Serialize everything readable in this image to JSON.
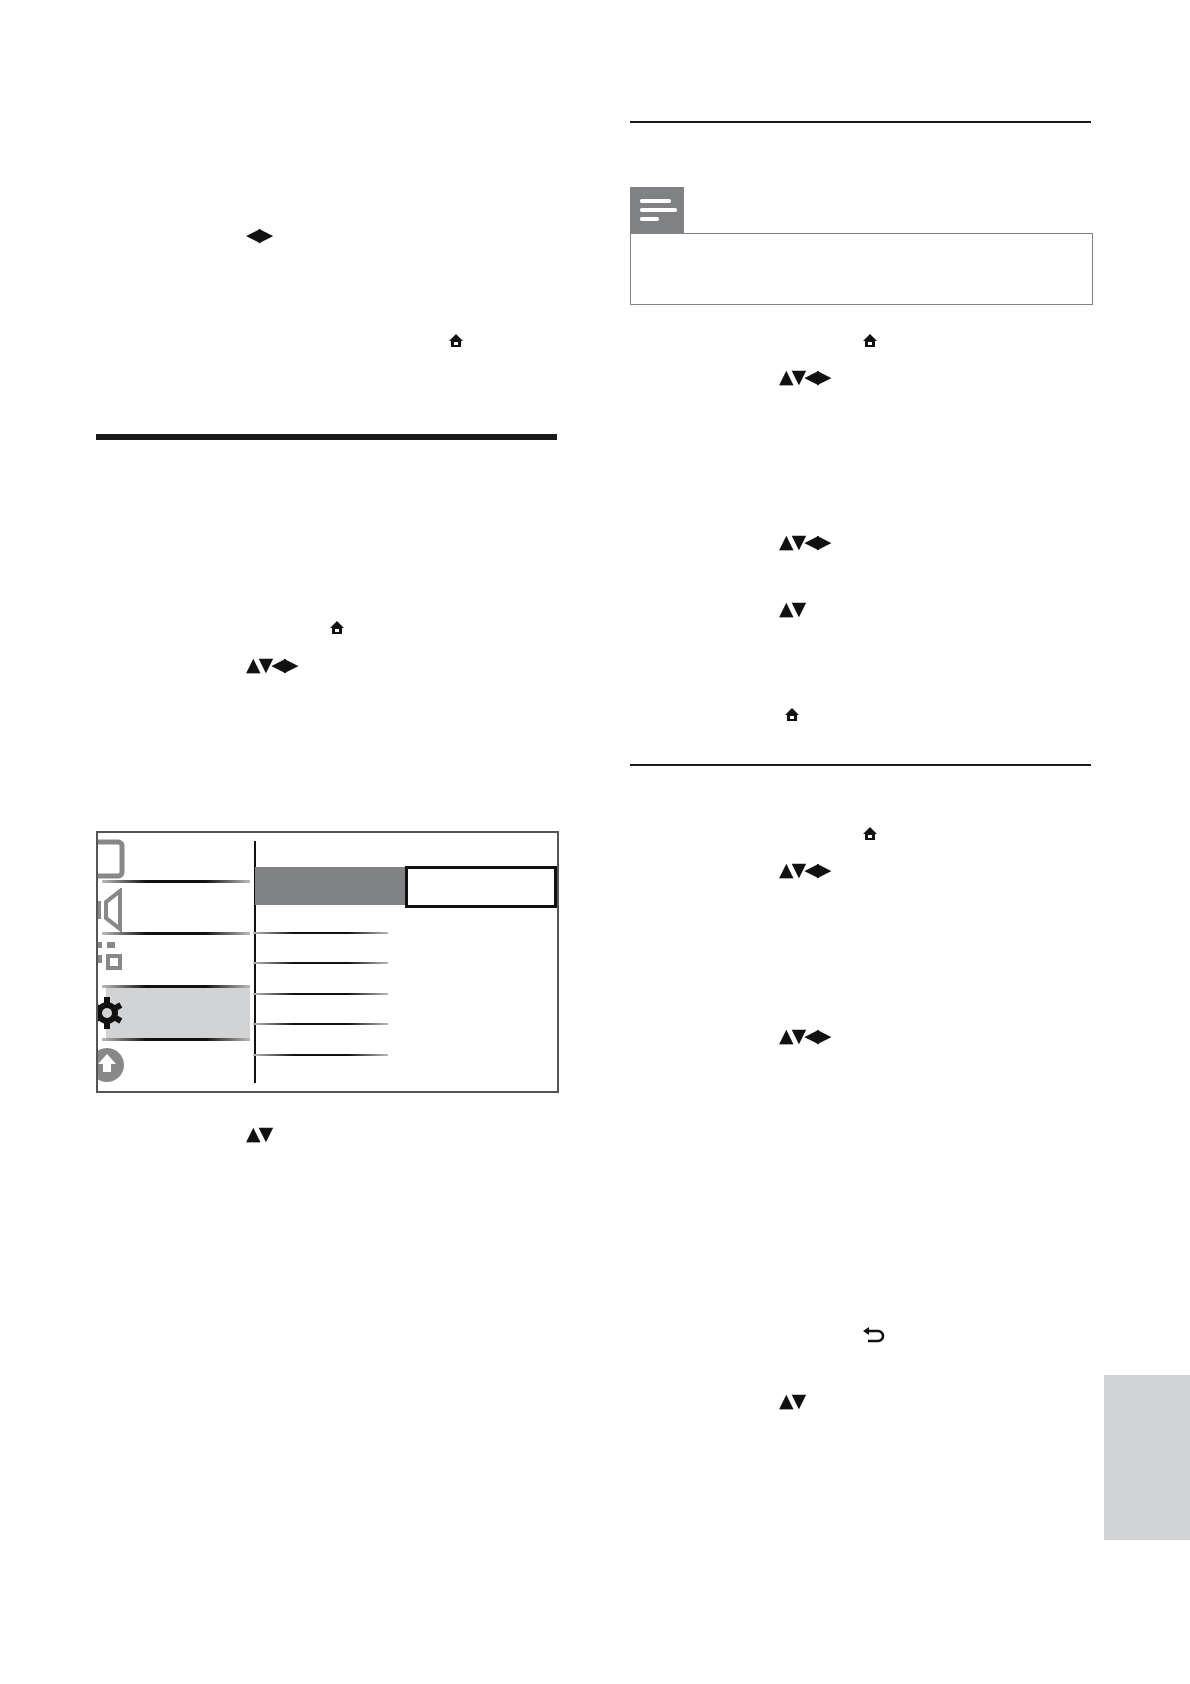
{
  "colors": {
    "note_tab": "#808184",
    "selected_item": "#808184",
    "highlight_panel": "#d1d3d4",
    "side_tab": "#d1d3d4"
  },
  "left_column": {
    "icons": [
      {
        "name": "left-right-arrows-icon",
        "glyph": "◀▶"
      },
      {
        "name": "home-icon"
      },
      {
        "name": "home-icon"
      },
      {
        "name": "navigation-arrows-icon",
        "glyph": "▲▼◀▶"
      },
      {
        "name": "up-down-arrows-icon",
        "glyph": "▲▼"
      }
    ],
    "menu": {
      "categories": [
        "tv-icon",
        "speaker-icon",
        "apps-icon",
        "gear-icon",
        "home-circle-icon"
      ],
      "selected_category": "gear-icon"
    }
  },
  "right_column": {
    "note_icon": "note-icon",
    "icons": [
      {
        "name": "home-icon"
      },
      {
        "name": "navigation-arrows-icon",
        "glyph": "▲▼◀▶"
      },
      {
        "name": "navigation-arrows-icon",
        "glyph": "▲▼◀▶"
      },
      {
        "name": "up-down-arrows-icon",
        "glyph": "▲▼"
      },
      {
        "name": "home-icon"
      },
      {
        "name": "home-icon"
      },
      {
        "name": "navigation-arrows-icon",
        "glyph": "▲▼◀▶"
      },
      {
        "name": "navigation-arrows-icon",
        "glyph": "▲▼◀▶"
      },
      {
        "name": "back-icon"
      },
      {
        "name": "up-down-arrows-icon",
        "glyph": "▲▼"
      }
    ]
  }
}
